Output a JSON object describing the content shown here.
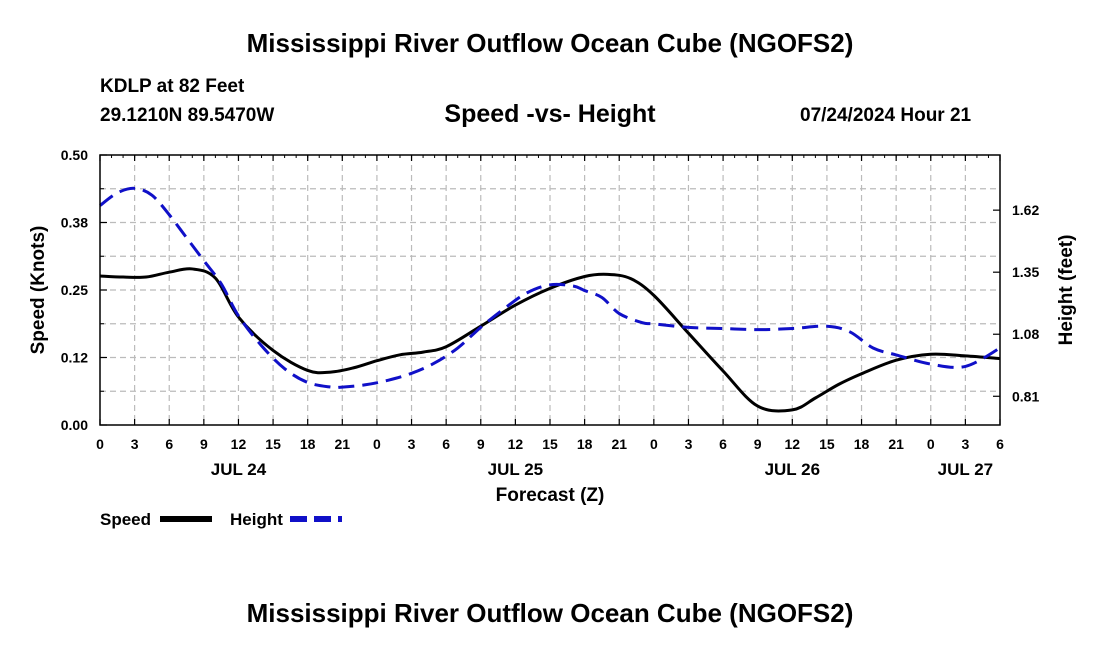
{
  "page": {
    "title": "Mississippi River Outflow Ocean Cube (NGOFS2)",
    "station": "KDLP at 82 Feet",
    "coords": "29.1210N  89.5470W",
    "subtitle": "Speed -vs- Height",
    "timestamp": "07/24/2024 Hour 21",
    "footer_title": "Mississippi River Outflow Ocean Cube (NGOFS2)"
  },
  "chart_data": {
    "type": "line",
    "title": "Speed -vs- Height",
    "xlabel": "Forecast (Z)",
    "ylabel": "Speed (Knots)",
    "y2label": "Height (feet)",
    "x_range_hours": [
      0,
      78
    ],
    "x_step_hours": 3,
    "x_tick_labels": [
      "0",
      "3",
      "6",
      "9",
      "12",
      "15",
      "18",
      "21",
      "0",
      "3",
      "6",
      "9",
      "12",
      "15",
      "18",
      "21",
      "0",
      "3",
      "6",
      "9",
      "12",
      "15",
      "18",
      "21",
      "0",
      "3",
      "6"
    ],
    "date_labels": [
      {
        "label": "JUL 24",
        "hour": 12
      },
      {
        "label": "JUL 25",
        "hour": 36
      },
      {
        "label": "JUL 26",
        "hour": 60
      },
      {
        "label": "JUL 27",
        "hour": 75
      }
    ],
    "ylim": [
      0,
      0.5
    ],
    "y_ticks": [
      0.0,
      0.125,
      0.25,
      0.375,
      0.5
    ],
    "y_tick_labels": [
      "0.00",
      "0.12",
      "0.25",
      "0.38",
      "0.50"
    ],
    "y2lim": [
      0.685,
      1.86
    ],
    "y2_ticks": [
      0.81,
      1.08,
      1.35,
      1.62
    ],
    "y2_tick_labels": [
      "0.81",
      "1.08",
      "1.35",
      "1.62"
    ],
    "grid": true,
    "legend": {
      "position": "bottom-left",
      "entries": [
        "Speed",
        "Height"
      ]
    },
    "series": [
      {
        "name": "Speed",
        "axis": "left",
        "color": "#000000",
        "dash": "solid",
        "x": [
          0,
          2,
          4,
          6,
          8,
          10,
          12,
          15,
          18,
          20,
          22,
          24,
          26,
          28,
          30,
          33,
          36,
          39,
          42,
          44,
          46,
          48,
          51,
          54,
          57,
          60,
          62,
          64,
          66,
          69,
          72,
          75,
          78
        ],
        "y": [
          0.276,
          0.274,
          0.274,
          0.283,
          0.289,
          0.272,
          0.2,
          0.138,
          0.101,
          0.098,
          0.106,
          0.119,
          0.13,
          0.135,
          0.145,
          0.183,
          0.222,
          0.253,
          0.275,
          0.279,
          0.271,
          0.24,
          0.17,
          0.1,
          0.035,
          0.028,
          0.05,
          0.075,
          0.095,
          0.12,
          0.131,
          0.128,
          0.123
        ]
      },
      {
        "name": "Height",
        "axis": "right",
        "color": "#1010c8",
        "dash": "dashed",
        "x": [
          0,
          1.5,
          3,
          4.5,
          6,
          7.5,
          9,
          10.5,
          12,
          14,
          16,
          18,
          20,
          21,
          23,
          25,
          27,
          29,
          31,
          33,
          35,
          37,
          39,
          41,
          42,
          43.5,
          45,
          47,
          48,
          51,
          54,
          57,
          60,
          63,
          65,
          67,
          69,
          72,
          75,
          78
        ],
        "y": [
          1.64,
          1.695,
          1.715,
          1.685,
          1.6,
          1.5,
          1.4,
          1.3,
          1.16,
          1.03,
          0.93,
          0.87,
          0.85,
          0.85,
          0.86,
          0.88,
          0.91,
          0.955,
          1.02,
          1.11,
          1.19,
          1.26,
          1.295,
          1.29,
          1.27,
          1.24,
          1.17,
          1.13,
          1.125,
          1.11,
          1.105,
          1.1,
          1.105,
          1.115,
          1.09,
          1.02,
          0.99,
          0.95,
          0.94,
          1.02
        ]
      }
    ]
  }
}
